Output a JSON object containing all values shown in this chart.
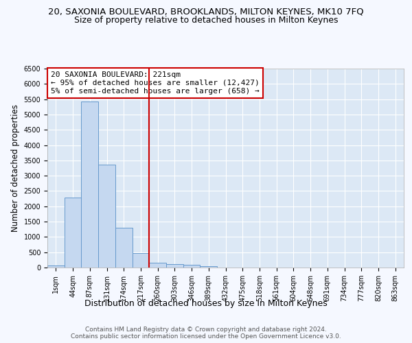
{
  "title1": "20, SAXONIA BOULEVARD, BROOKLANDS, MILTON KEYNES, MK10 7FQ",
  "title2": "Size of property relative to detached houses in Milton Keynes",
  "xlabel": "Distribution of detached houses by size in Milton Keynes",
  "ylabel": "Number of detached properties",
  "bar_labels": [
    "1sqm",
    "44sqm",
    "87sqm",
    "131sqm",
    "174sqm",
    "217sqm",
    "260sqm",
    "303sqm",
    "346sqm",
    "389sqm",
    "432sqm",
    "475sqm",
    "518sqm",
    "561sqm",
    "604sqm",
    "648sqm",
    "691sqm",
    "734sqm",
    "777sqm",
    "820sqm",
    "863sqm"
  ],
  "bar_values": [
    70,
    2280,
    5430,
    3370,
    1290,
    480,
    165,
    110,
    80,
    50,
    0,
    0,
    0,
    0,
    0,
    0,
    0,
    0,
    0,
    0,
    0
  ],
  "bar_color": "#c5d8f0",
  "bar_edge_color": "#6699cc",
  "plot_bg_color": "#dce8f5",
  "fig_bg_color": "#f5f8ff",
  "grid_color": "#ffffff",
  "vline_x": 5.5,
  "vline_color": "#cc0000",
  "ylim_max": 6500,
  "ytick_step": 500,
  "annotation_line1": "20 SAXONIA BOULEVARD: 221sqm",
  "annotation_line2": "← 95% of detached houses are smaller (12,427)",
  "annotation_line3": "5% of semi-detached houses are larger (658) →",
  "footer_line1": "Contains HM Land Registry data © Crown copyright and database right 2024.",
  "footer_line2": "Contains public sector information licensed under the Open Government Licence v3.0.",
  "title1_fontsize": 9.5,
  "title2_fontsize": 9,
  "tick_fontsize": 7,
  "ylabel_fontsize": 8.5,
  "xlabel_fontsize": 9,
  "annotation_fontsize": 8,
  "footer_fontsize": 6.5,
  "ann_box_edge_color": "#cc0000"
}
